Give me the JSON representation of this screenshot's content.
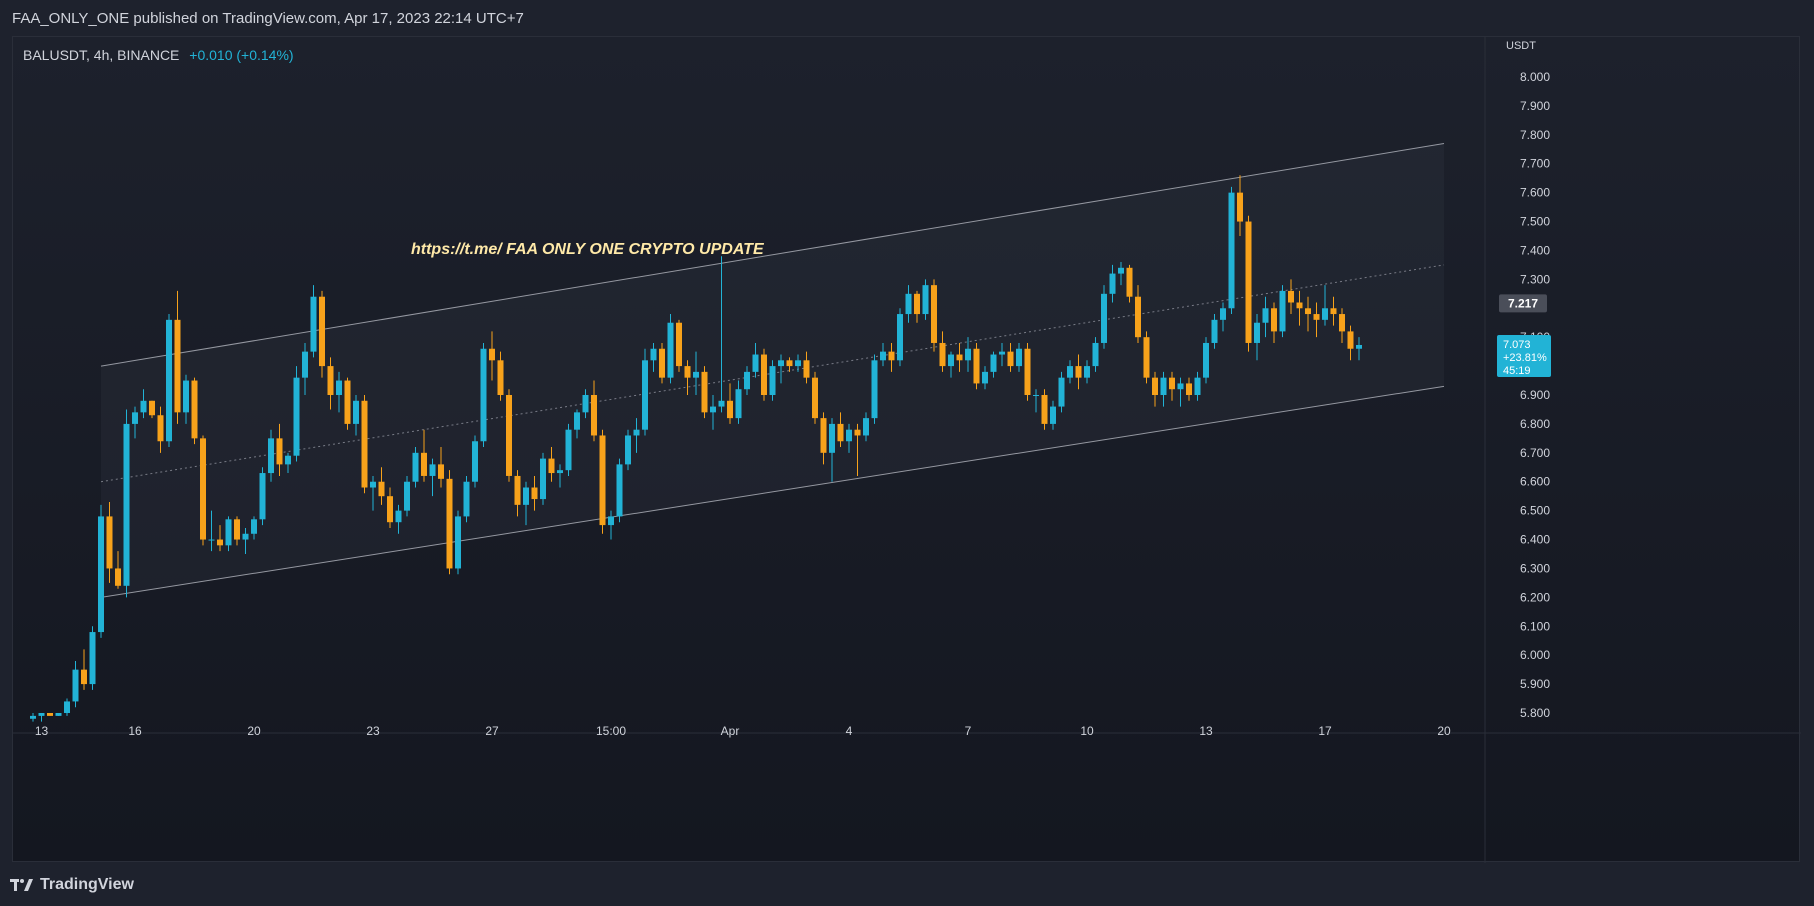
{
  "header": {
    "publisher": "FAA_ONLY_ONE published on TradingView.com, Apr 17, 2023 22:14 UTC+7"
  },
  "symbol": {
    "name": "BALUSDT, 4h, BINANCE",
    "change": "+0.010 (+0.14%)"
  },
  "footer": {
    "brand": "TradingView"
  },
  "colors": {
    "up": "#22b3d6",
    "down": "#f7a21b",
    "bg": "#1e222d",
    "grid": "#2a2e39"
  },
  "chart_data": {
    "type": "candlestick",
    "currency_label": "USDT",
    "annotation": "https://t.me/ FAA ONLY ONE CRYPTO UPDATE",
    "y_ticks": [
      "8.000",
      "7.900",
      "7.800",
      "7.700",
      "7.600",
      "7.500",
      "7.400",
      "7.300",
      "7.100",
      "6.900",
      "6.800",
      "6.700",
      "6.600",
      "6.500",
      "6.400",
      "6.300",
      "6.200",
      "6.100",
      "6.000",
      "5.900",
      "5.800"
    ],
    "ylim": [
      5.8,
      8.0
    ],
    "x_ticks": [
      "13",
      "16",
      "20",
      "23",
      "27",
      "15:00",
      "Apr",
      "4",
      "7",
      "10",
      "13",
      "17",
      "20"
    ],
    "x_tick_index": [
      1,
      12,
      26,
      40,
      54,
      68,
      82,
      96,
      110,
      124,
      138,
      152,
      166
    ],
    "price_labels": {
      "last_visible": "7.217",
      "current": "7.073",
      "current_change": "+23.81%",
      "countdown": "45:19",
      "current_value": 7.073,
      "last_visible_value": 7.217
    },
    "channel": {
      "upper": [
        [
          8,
          7.0
        ],
        [
          166,
          7.77
        ]
      ],
      "middle": [
        [
          8,
          6.6
        ],
        [
          166,
          7.35
        ]
      ],
      "lower": [
        [
          8,
          6.2
        ],
        [
          166,
          6.93
        ]
      ]
    },
    "candles": [
      [
        5.78,
        5.8,
        5.77,
        5.79
      ],
      [
        5.79,
        5.8,
        5.77,
        5.8
      ],
      [
        5.8,
        5.8,
        5.79,
        5.79
      ],
      [
        5.79,
        5.8,
        5.79,
        5.8
      ],
      [
        5.8,
        5.85,
        5.79,
        5.84
      ],
      [
        5.84,
        5.98,
        5.82,
        5.95
      ],
      [
        5.95,
        6.02,
        5.88,
        5.9
      ],
      [
        5.9,
        6.1,
        5.88,
        6.08
      ],
      [
        6.08,
        6.52,
        6.06,
        6.48
      ],
      [
        6.48,
        6.53,
        6.25,
        6.3
      ],
      [
        6.3,
        6.36,
        6.23,
        6.24
      ],
      [
        6.24,
        6.85,
        6.2,
        6.8
      ],
      [
        6.8,
        6.86,
        6.75,
        6.84
      ],
      [
        6.84,
        6.92,
        6.82,
        6.88
      ],
      [
        6.88,
        6.88,
        6.82,
        6.83
      ],
      [
        6.83,
        6.86,
        6.7,
        6.74
      ],
      [
        6.74,
        7.18,
        6.72,
        7.16
      ],
      [
        7.16,
        7.26,
        6.8,
        6.84
      ],
      [
        6.84,
        6.97,
        6.8,
        6.95
      ],
      [
        6.95,
        6.96,
        6.73,
        6.75
      ],
      [
        6.75,
        6.76,
        6.38,
        6.4
      ],
      [
        6.4,
        6.5,
        6.36,
        6.4
      ],
      [
        6.4,
        6.45,
        6.36,
        6.38
      ],
      [
        6.38,
        6.48,
        6.36,
        6.47
      ],
      [
        6.47,
        6.48,
        6.38,
        6.4
      ],
      [
        6.4,
        6.44,
        6.35,
        6.42
      ],
      [
        6.42,
        6.48,
        6.4,
        6.47
      ],
      [
        6.47,
        6.65,
        6.45,
        6.63
      ],
      [
        6.63,
        6.78,
        6.6,
        6.75
      ],
      [
        6.75,
        6.8,
        6.62,
        6.66
      ],
      [
        6.66,
        6.7,
        6.63,
        6.69
      ],
      [
        6.69,
        7.0,
        6.67,
        6.96
      ],
      [
        6.96,
        7.08,
        6.9,
        7.05
      ],
      [
        7.05,
        7.28,
        7.03,
        7.24
      ],
      [
        7.24,
        7.26,
        6.96,
        7.0
      ],
      [
        7.0,
        7.03,
        6.85,
        6.9
      ],
      [
        6.9,
        6.98,
        6.84,
        6.95
      ],
      [
        6.95,
        6.96,
        6.78,
        6.8
      ],
      [
        6.8,
        6.9,
        6.76,
        6.88
      ],
      [
        6.88,
        6.9,
        6.56,
        6.58
      ],
      [
        6.58,
        6.62,
        6.5,
        6.6
      ],
      [
        6.6,
        6.65,
        6.52,
        6.55
      ],
      [
        6.55,
        6.58,
        6.44,
        6.46
      ],
      [
        6.46,
        6.52,
        6.42,
        6.5
      ],
      [
        6.5,
        6.62,
        6.48,
        6.6
      ],
      [
        6.6,
        6.72,
        6.58,
        6.7
      ],
      [
        6.7,
        6.78,
        6.6,
        6.62
      ],
      [
        6.62,
        6.68,
        6.55,
        6.66
      ],
      [
        6.66,
        6.72,
        6.58,
        6.61
      ],
      [
        6.61,
        6.64,
        6.28,
        6.3
      ],
      [
        6.3,
        6.5,
        6.28,
        6.48
      ],
      [
        6.48,
        6.62,
        6.46,
        6.6
      ],
      [
        6.6,
        6.76,
        6.58,
        6.74
      ],
      [
        6.74,
        7.08,
        6.72,
        7.06
      ],
      [
        7.06,
        7.12,
        6.95,
        7.02
      ],
      [
        7.02,
        7.05,
        6.88,
        6.9
      ],
      [
        6.9,
        6.92,
        6.6,
        6.62
      ],
      [
        6.62,
        6.64,
        6.48,
        6.52
      ],
      [
        6.52,
        6.6,
        6.45,
        6.58
      ],
      [
        6.58,
        6.62,
        6.5,
        6.54
      ],
      [
        6.54,
        6.7,
        6.52,
        6.68
      ],
      [
        6.68,
        6.72,
        6.6,
        6.63
      ],
      [
        6.63,
        6.66,
        6.58,
        6.64
      ],
      [
        6.64,
        6.8,
        6.62,
        6.78
      ],
      [
        6.78,
        6.85,
        6.75,
        6.84
      ],
      [
        6.84,
        6.92,
        6.82,
        6.9
      ],
      [
        6.9,
        6.95,
        6.74,
        6.76
      ],
      [
        6.76,
        6.78,
        6.42,
        6.45
      ],
      [
        6.45,
        6.5,
        6.4,
        6.48
      ],
      [
        6.48,
        6.68,
        6.46,
        6.66
      ],
      [
        6.66,
        6.78,
        6.64,
        6.76
      ],
      [
        6.76,
        6.82,
        6.7,
        6.78
      ],
      [
        6.78,
        7.06,
        6.76,
        7.02
      ],
      [
        7.02,
        7.08,
        6.98,
        7.06
      ],
      [
        7.06,
        7.08,
        6.94,
        6.96
      ],
      [
        6.96,
        7.18,
        6.94,
        7.15
      ],
      [
        7.15,
        7.16,
        6.98,
        7.0
      ],
      [
        7.0,
        7.02,
        6.9,
        6.96
      ],
      [
        6.96,
        7.05,
        6.9,
        6.98
      ],
      [
        6.98,
        7.0,
        6.82,
        6.84
      ],
      [
        6.84,
        6.9,
        6.78,
        6.86
      ],
      [
        6.86,
        7.38,
        6.84,
        6.88
      ],
      [
        6.88,
        6.94,
        6.8,
        6.82
      ],
      [
        6.82,
        6.95,
        6.8,
        6.92
      ],
      [
        6.92,
        7.0,
        6.9,
        6.98
      ],
      [
        6.98,
        7.08,
        6.96,
        7.04
      ],
      [
        7.04,
        7.06,
        6.88,
        6.9
      ],
      [
        6.9,
        7.02,
        6.88,
        7.0
      ],
      [
        7.0,
        7.04,
        6.94,
        7.02
      ],
      [
        7.02,
        7.03,
        6.98,
        7.0
      ],
      [
        7.0,
        7.04,
        6.98,
        7.02
      ],
      [
        7.02,
        7.05,
        6.94,
        6.96
      ],
      [
        6.96,
        6.98,
        6.8,
        6.82
      ],
      [
        6.82,
        6.84,
        6.66,
        6.7
      ],
      [
        6.7,
        6.82,
        6.6,
        6.8
      ],
      [
        6.8,
        6.84,
        6.72,
        6.74
      ],
      [
        6.74,
        6.8,
        6.7,
        6.78
      ],
      [
        6.78,
        6.8,
        6.62,
        6.76
      ],
      [
        6.76,
        6.84,
        6.74,
        6.82
      ],
      [
        6.82,
        7.04,
        6.8,
        7.02
      ],
      [
        7.02,
        7.08,
        7.0,
        7.05
      ],
      [
        7.05,
        7.08,
        6.98,
        7.02
      ],
      [
        7.02,
        7.2,
        7.0,
        7.18
      ],
      [
        7.18,
        7.28,
        7.15,
        7.25
      ],
      [
        7.25,
        7.26,
        7.15,
        7.18
      ],
      [
        7.18,
        7.3,
        7.16,
        7.28
      ],
      [
        7.28,
        7.3,
        7.05,
        7.08
      ],
      [
        7.08,
        7.12,
        6.98,
        7.0
      ],
      [
        7.0,
        7.05,
        6.96,
        7.04
      ],
      [
        7.04,
        7.08,
        6.98,
        7.02
      ],
      [
        7.02,
        7.1,
        6.98,
        7.06
      ],
      [
        7.06,
        7.08,
        6.92,
        6.94
      ],
      [
        6.94,
        7.0,
        6.92,
        6.98
      ],
      [
        6.98,
        7.05,
        6.96,
        7.04
      ],
      [
        7.04,
        7.08,
        7.0,
        7.05
      ],
      [
        7.05,
        7.08,
        6.98,
        7.0
      ],
      [
        7.0,
        7.08,
        6.98,
        7.06
      ],
      [
        7.06,
        7.08,
        6.88,
        6.9
      ],
      [
        6.9,
        6.92,
        6.84,
        6.9
      ],
      [
        6.9,
        6.92,
        6.78,
        6.8
      ],
      [
        6.8,
        6.88,
        6.78,
        6.86
      ],
      [
        6.86,
        6.98,
        6.84,
        6.96
      ],
      [
        6.96,
        7.02,
        6.94,
        7.0
      ],
      [
        7.0,
        7.04,
        6.92,
        6.96
      ],
      [
        6.96,
        7.02,
        6.94,
        7.0
      ],
      [
        7.0,
        7.1,
        6.98,
        7.08
      ],
      [
        7.08,
        7.28,
        7.06,
        7.25
      ],
      [
        7.25,
        7.35,
        7.22,
        7.32
      ],
      [
        7.32,
        7.36,
        7.28,
        7.34
      ],
      [
        7.34,
        7.35,
        7.22,
        7.24
      ],
      [
        7.24,
        7.28,
        7.08,
        7.1
      ],
      [
        7.1,
        7.12,
        6.94,
        6.96
      ],
      [
        6.96,
        6.98,
        6.86,
        6.9
      ],
      [
        6.9,
        6.98,
        6.86,
        6.96
      ],
      [
        6.96,
        6.98,
        6.88,
        6.92
      ],
      [
        6.92,
        6.96,
        6.86,
        6.94
      ],
      [
        6.94,
        6.96,
        6.88,
        6.9
      ],
      [
        6.9,
        6.98,
        6.88,
        6.96
      ],
      [
        6.96,
        7.1,
        6.94,
        7.08
      ],
      [
        7.08,
        7.18,
        7.06,
        7.16
      ],
      [
        7.16,
        7.22,
        7.12,
        7.2
      ],
      [
        7.2,
        7.62,
        7.18,
        7.6
      ],
      [
        7.6,
        7.66,
        7.45,
        7.5
      ],
      [
        7.5,
        7.52,
        7.05,
        7.08
      ],
      [
        7.08,
        7.18,
        7.02,
        7.15
      ],
      [
        7.15,
        7.24,
        7.1,
        7.2
      ],
      [
        7.2,
        7.22,
        7.08,
        7.12
      ],
      [
        7.12,
        7.28,
        7.1,
        7.26
      ],
      [
        7.26,
        7.3,
        7.18,
        7.22
      ],
      [
        7.22,
        7.26,
        7.14,
        7.2
      ],
      [
        7.2,
        7.24,
        7.12,
        7.18
      ],
      [
        7.18,
        7.22,
        7.1,
        7.16
      ],
      [
        7.16,
        7.28,
        7.14,
        7.2
      ],
      [
        7.2,
        7.24,
        7.14,
        7.18
      ],
      [
        7.18,
        7.2,
        7.08,
        7.12
      ],
      [
        7.12,
        7.14,
        7.02,
        7.06
      ],
      [
        7.06,
        7.1,
        7.02,
        7.073
      ]
    ]
  }
}
